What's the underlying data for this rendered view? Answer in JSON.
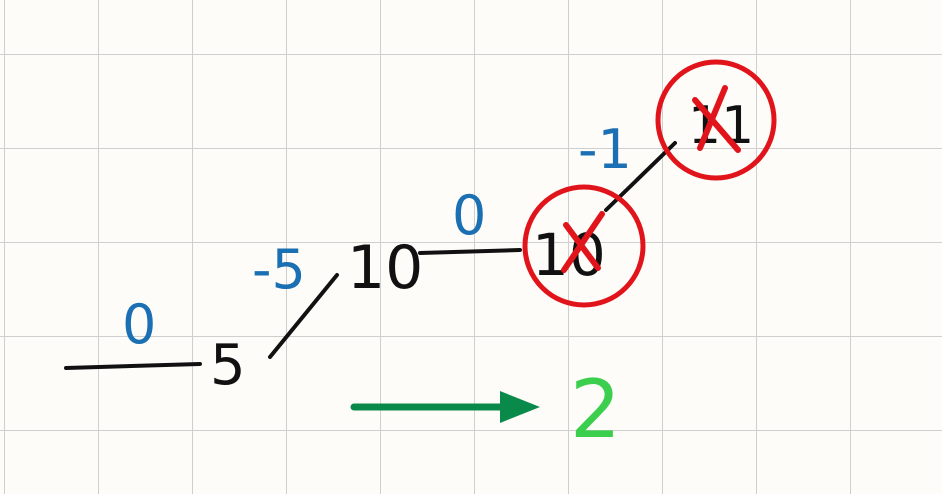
{
  "nodes": [
    {
      "id": "n5",
      "label": "5",
      "crossed": false
    },
    {
      "id": "n10a",
      "label": "10",
      "crossed": false
    },
    {
      "id": "n10b",
      "label": "10",
      "crossed": true
    },
    {
      "id": "n11",
      "label": "11",
      "crossed": true
    }
  ],
  "edges": [
    {
      "id": "e0",
      "label": "0"
    },
    {
      "id": "e1",
      "label": "-5"
    },
    {
      "id": "e2",
      "label": "0"
    },
    {
      "id": "e3",
      "label": "-1"
    }
  ],
  "result": {
    "label": "2"
  },
  "colors": {
    "ink": "#111111",
    "edge_label": "#1b6fb3",
    "circle": "#e0141a",
    "arrow": "#0a8a4a",
    "result": "#3ccf4e"
  }
}
